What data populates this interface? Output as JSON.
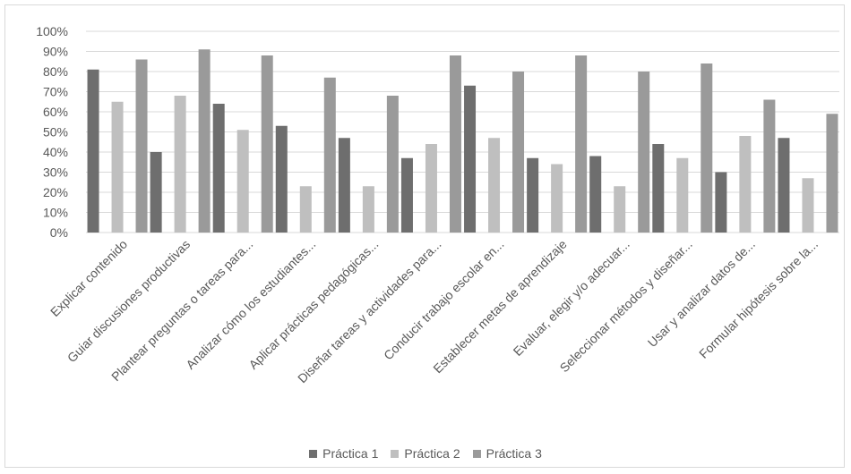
{
  "chart_data": {
    "type": "bar",
    "title": "",
    "xlabel": "",
    "ylabel": "",
    "ylim": [
      0,
      100
    ],
    "y_ticks": [
      "0%",
      "10%",
      "20%",
      "30%",
      "40%",
      "50%",
      "60%",
      "70%",
      "80%",
      "90%",
      "100%"
    ],
    "grid": true,
    "legend_position": "bottom",
    "categories": [
      "Explicar contenido",
      "Guiar discusiones productivas",
      "Plantear preguntas o tareas para...",
      "Analizar cómo los estudiantes...",
      "Aplicar prácticas pedagógicas...",
      "Diseñar tareas y actividades para...",
      "Conducir trabajo escolar en...",
      "Establecer metas de aprendizaje",
      "Evaluar, elegir y/o adecuar...",
      "Seleccionar métodos y diseñar...",
      "Usar y analizar datos de...",
      "Formular hipótesis sobre la..."
    ],
    "series": [
      {
        "name": "Práctica 1",
        "color": "#6e6e6e",
        "values": [
          81,
          40,
          64,
          53,
          47,
          37,
          73,
          37,
          38,
          44,
          30,
          47
        ]
      },
      {
        "name": "Práctica 2",
        "color": "#bfbfbf",
        "values": [
          65,
          68,
          51,
          23,
          23,
          44,
          47,
          34,
          23,
          37,
          48,
          27
        ]
      },
      {
        "name": "Práctica 3",
        "color": "#9a9a9a",
        "values": [
          86,
          91,
          88,
          77,
          68,
          88,
          80,
          88,
          80,
          84,
          66,
          59
        ]
      }
    ]
  }
}
